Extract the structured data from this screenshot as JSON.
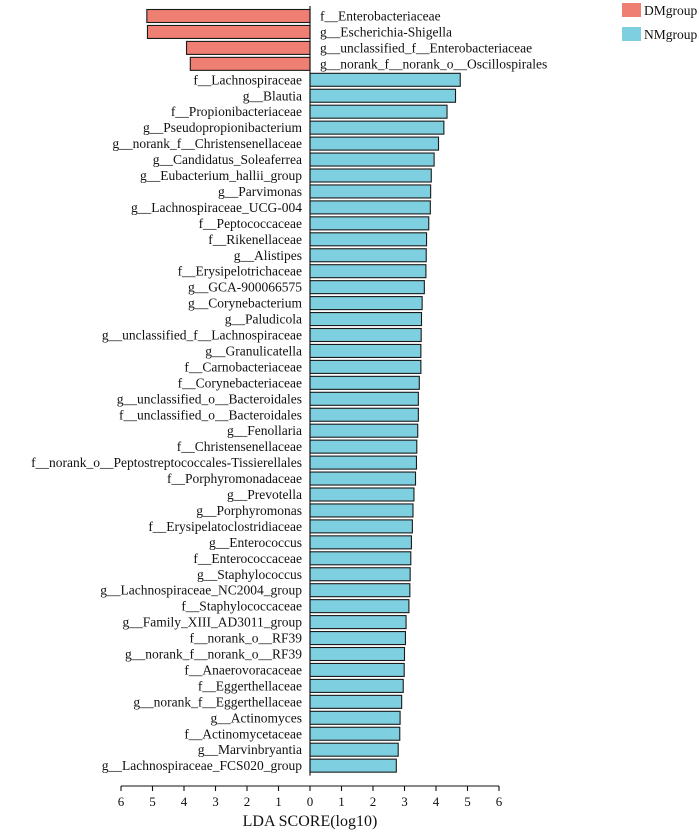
{
  "chart_data": {
    "type": "bar",
    "orientation": "horizontal",
    "xlabel": "LDA SCORE(log10)",
    "xlim": [
      -6,
      6
    ],
    "xticks": [
      -6,
      -5,
      -4,
      -3,
      -2,
      -1,
      0,
      1,
      2,
      3,
      4,
      5,
      6
    ],
    "xtick_labels": [
      "6",
      "5",
      "4",
      "3",
      "2",
      "1",
      "0",
      "1",
      "2",
      "3",
      "4",
      "5",
      "6"
    ],
    "grid": false,
    "legend_position": "top-right",
    "legend": [
      {
        "name": "DMgroup",
        "color": "#ef7f73"
      },
      {
        "name": "NMgroup",
        "color": "#7ecfe0"
      }
    ],
    "bars": [
      {
        "label": "f__Enterobacteriaceae",
        "value": 5.18,
        "group": "DMgroup"
      },
      {
        "label": "g__Escherichia-Shigella",
        "value": 5.16,
        "group": "DMgroup"
      },
      {
        "label": "g__unclassified_f__Enterobacteriaceae",
        "value": 3.92,
        "group": "DMgroup"
      },
      {
        "label": "g__norank_f__norank_o__Oscillospirales",
        "value": 3.8,
        "group": "DMgroup"
      },
      {
        "label": "f__Lachnospiraceae",
        "value": 4.77,
        "group": "NMgroup"
      },
      {
        "label": "g__Blautia",
        "value": 4.62,
        "group": "NMgroup"
      },
      {
        "label": "f__Propionibacteriaceae",
        "value": 4.35,
        "group": "NMgroup"
      },
      {
        "label": "g__Pseudopropionibacterium",
        "value": 4.25,
        "group": "NMgroup"
      },
      {
        "label": "g__norank_f__Christensenellaceae",
        "value": 4.08,
        "group": "NMgroup"
      },
      {
        "label": "g__Candidatus_Soleaferrea",
        "value": 3.94,
        "group": "NMgroup"
      },
      {
        "label": "g__Eubacterium_hallii_group",
        "value": 3.85,
        "group": "NMgroup"
      },
      {
        "label": "g__Parvimonas",
        "value": 3.83,
        "group": "NMgroup"
      },
      {
        "label": "g__Lachnospiraceae_UCG-004",
        "value": 3.82,
        "group": "NMgroup"
      },
      {
        "label": "f__Peptococcaceae",
        "value": 3.77,
        "group": "NMgroup"
      },
      {
        "label": "f__Rikenellaceae",
        "value": 3.7,
        "group": "NMgroup"
      },
      {
        "label": "g__Alistipes",
        "value": 3.69,
        "group": "NMgroup"
      },
      {
        "label": "f__Erysipelotrichaceae",
        "value": 3.68,
        "group": "NMgroup"
      },
      {
        "label": "g__GCA-900066575",
        "value": 3.63,
        "group": "NMgroup"
      },
      {
        "label": "g__Corynebacterium",
        "value": 3.56,
        "group": "NMgroup"
      },
      {
        "label": "g__Paludicola",
        "value": 3.54,
        "group": "NMgroup"
      },
      {
        "label": "g__unclassified_f__Lachnospiraceae",
        "value": 3.53,
        "group": "NMgroup"
      },
      {
        "label": "g__Granulicatella",
        "value": 3.52,
        "group": "NMgroup"
      },
      {
        "label": "f__Carnobacteriaceae",
        "value": 3.52,
        "group": "NMgroup"
      },
      {
        "label": "f__Corynebacteriaceae",
        "value": 3.47,
        "group": "NMgroup"
      },
      {
        "label": "g__unclassified_o__Bacteroidales",
        "value": 3.44,
        "group": "NMgroup"
      },
      {
        "label": "f__unclassified_o__Bacteroidales",
        "value": 3.44,
        "group": "NMgroup"
      },
      {
        "label": "g__Fenollaria",
        "value": 3.42,
        "group": "NMgroup"
      },
      {
        "label": "f__Christensenellaceae",
        "value": 3.39,
        "group": "NMgroup"
      },
      {
        "label": "f__norank_o__Peptostreptococcales-Tissierellales",
        "value": 3.38,
        "group": "NMgroup"
      },
      {
        "label": "f__Porphyromonadaceae",
        "value": 3.35,
        "group": "NMgroup"
      },
      {
        "label": "g__Prevotella",
        "value": 3.3,
        "group": "NMgroup"
      },
      {
        "label": "g__Porphyromonas",
        "value": 3.27,
        "group": "NMgroup"
      },
      {
        "label": "f__Erysipelatoclostridiaceae",
        "value": 3.25,
        "group": "NMgroup"
      },
      {
        "label": "g__Enterococcus",
        "value": 3.22,
        "group": "NMgroup"
      },
      {
        "label": "f__Enterococcaceae",
        "value": 3.2,
        "group": "NMgroup"
      },
      {
        "label": "g__Staphylococcus",
        "value": 3.18,
        "group": "NMgroup"
      },
      {
        "label": "g__Lachnospiraceae_NC2004_group",
        "value": 3.17,
        "group": "NMgroup"
      },
      {
        "label": "f__Staphylococcaceae",
        "value": 3.14,
        "group": "NMgroup"
      },
      {
        "label": "g__Family_XIII_AD3011_group",
        "value": 3.05,
        "group": "NMgroup"
      },
      {
        "label": "f__norank_o__RF39",
        "value": 3.03,
        "group": "NMgroup"
      },
      {
        "label": "g__norank_f__norank_o__RF39",
        "value": 3.0,
        "group": "NMgroup"
      },
      {
        "label": "f__Anaerovoracaceae",
        "value": 2.99,
        "group": "NMgroup"
      },
      {
        "label": "f__Eggerthellaceae",
        "value": 2.96,
        "group": "NMgroup"
      },
      {
        "label": "g__norank_f__Eggerthellaceae",
        "value": 2.91,
        "group": "NMgroup"
      },
      {
        "label": "g__Actinomyces",
        "value": 2.86,
        "group": "NMgroup"
      },
      {
        "label": "f__Actinomycetaceae",
        "value": 2.85,
        "group": "NMgroup"
      },
      {
        "label": "g__Marvinbryantia",
        "value": 2.8,
        "group": "NMgroup"
      },
      {
        "label": "g__Lachnospiraceae_FCS020_group",
        "value": 2.74,
        "group": "NMgroup"
      }
    ]
  }
}
